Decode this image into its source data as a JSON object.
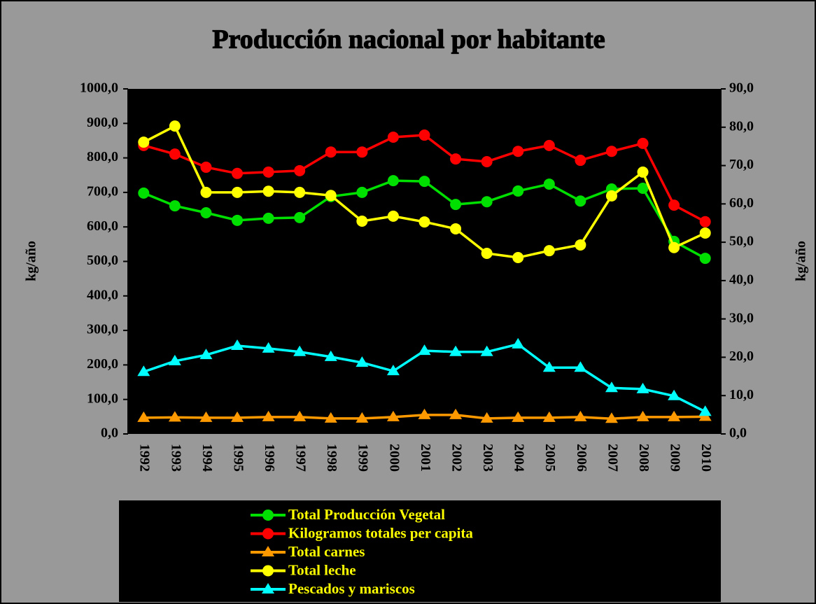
{
  "chart_data": {
    "type": "line",
    "title": "Producción nacional por habitante",
    "ylabel": "kg/año",
    "y2label": "kg/año",
    "categories": [
      "1992",
      "1993",
      "1994",
      "1995",
      "1996",
      "1997",
      "1998",
      "1999",
      "2000",
      "2001",
      "2002",
      "2003",
      "2004",
      "2005",
      "2006",
      "2007",
      "2008",
      "2009",
      "2010"
    ],
    "ylim": [
      0,
      1000
    ],
    "yticks": [
      {
        "value": 0,
        "label": "0,0"
      },
      {
        "value": 100,
        "label": "100,0"
      },
      {
        "value": 200,
        "label": "200,0"
      },
      {
        "value": 300,
        "label": "300,0"
      },
      {
        "value": 400,
        "label": "400,0"
      },
      {
        "value": 500,
        "label": "500,0"
      },
      {
        "value": 600,
        "label": "600,0"
      },
      {
        "value": 700,
        "label": "700,0"
      },
      {
        "value": 800,
        "label": "800,0"
      },
      {
        "value": 900,
        "label": "900,0"
      },
      {
        "value": 1000,
        "label": "1000,0"
      }
    ],
    "y2lim": [
      0,
      90
    ],
    "y2ticks": [
      {
        "value": 0,
        "label": "0,0"
      },
      {
        "value": 10,
        "label": "10,0"
      },
      {
        "value": 20,
        "label": "20,0"
      },
      {
        "value": 30,
        "label": "30,0"
      },
      {
        "value": 40,
        "label": "40,0"
      },
      {
        "value": 50,
        "label": "50,0"
      },
      {
        "value": 60,
        "label": "60,0"
      },
      {
        "value": 70,
        "label": "70,0"
      },
      {
        "value": 80,
        "label": "80,0"
      },
      {
        "value": 90,
        "label": "90,0"
      }
    ],
    "legend": "bottom",
    "series": [
      {
        "name": "Total Producción Vegetal",
        "color": "#00e000",
        "marker": "circle",
        "values": [
          698,
          661,
          641,
          619,
          625,
          627,
          688,
          700,
          734,
          732,
          665,
          673,
          704,
          724,
          675,
          710,
          712,
          558,
          509
        ]
      },
      {
        "name": "Kilogramos totales per capita",
        "color": "#ff0000",
        "marker": "circle",
        "values": [
          836,
          811,
          773,
          755,
          759,
          763,
          817,
          817,
          860,
          866,
          797,
          789,
          819,
          836,
          793,
          819,
          842,
          663,
          615
        ]
      },
      {
        "name": "Total carnes",
        "color": "#ff9900",
        "marker": "triangle",
        "values": [
          47,
          48,
          47,
          47,
          49,
          49,
          45,
          45,
          49,
          55,
          55,
          45,
          47,
          47,
          49,
          44,
          49,
          49,
          50
        ]
      },
      {
        "name": "Total leche",
        "color": "#ffff00",
        "marker": "circle",
        "axis": "y2",
        "values": [
          76.1,
          80.3,
          63.0,
          63.0,
          63.3,
          63.0,
          62.2,
          55.5,
          56.8,
          55.3,
          53.5,
          47.1,
          46.0,
          47.8,
          49.3,
          62.1,
          68.3,
          48.6,
          52.4
        ]
      },
      {
        "name": "Pescados y mariscos",
        "color": "#00ffff",
        "marker": "triangle",
        "axis": "y2",
        "values": [
          16.2,
          19.0,
          20.6,
          23.0,
          22.3,
          21.4,
          20.1,
          18.6,
          16.4,
          21.7,
          21.4,
          21.4,
          23.4,
          17.3,
          17.3,
          12.0,
          11.7,
          9.9,
          5.8
        ]
      }
    ]
  }
}
